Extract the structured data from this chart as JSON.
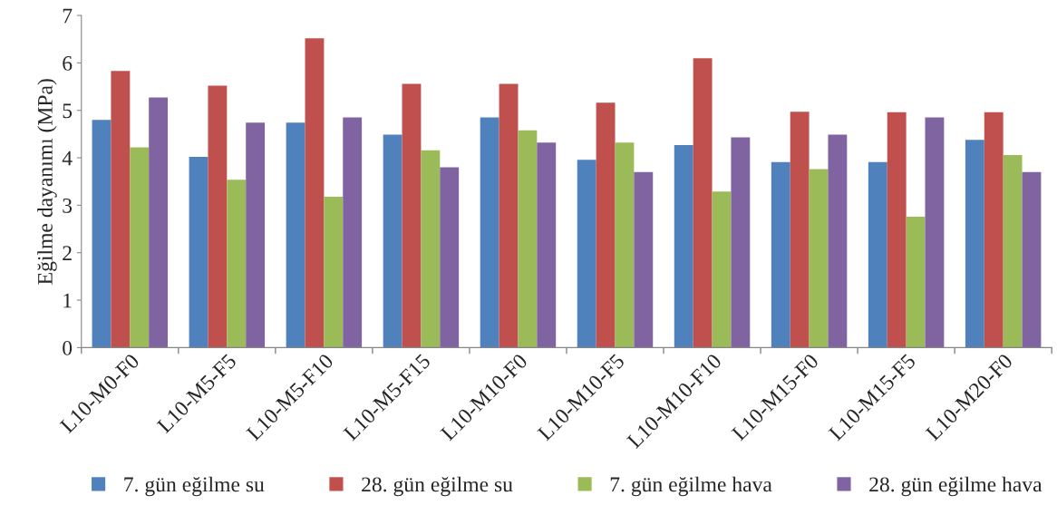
{
  "chart_data": {
    "type": "bar",
    "ylabel": "Eğilme dayanımı (MPa)",
    "categories": [
      "L10-M0-F0",
      "L10-M5-F5",
      "L10-M5-F10",
      "L10-M5-F15",
      "L10-M10-F0",
      "L10-M10-F5",
      "L10-M10-F10",
      "L10-M15-F0",
      "L10-M15-F5",
      "L10-M20-F0"
    ],
    "series": [
      {
        "name": "7. gün eğilme su",
        "color": "#4f81bd",
        "values": [
          4.8,
          4.02,
          4.74,
          4.49,
          4.85,
          3.96,
          4.27,
          3.91,
          3.91,
          4.38
        ]
      },
      {
        "name": "28. gün eğilme su",
        "color": "#c0504d",
        "values": [
          5.83,
          5.52,
          6.52,
          5.56,
          5.56,
          5.16,
          6.1,
          4.97,
          4.96,
          4.96
        ]
      },
      {
        "name": "7. gün eğilme hava",
        "color": "#9bbb59",
        "values": [
          4.22,
          3.54,
          3.18,
          4.16,
          4.58,
          4.32,
          3.29,
          3.76,
          2.76,
          4.06
        ]
      },
      {
        "name": "28. gün eğilme hava",
        "color": "#8064a2",
        "values": [
          5.27,
          4.74,
          4.85,
          3.8,
          4.32,
          3.7,
          4.43,
          4.49,
          4.85,
          3.7
        ]
      }
    ],
    "ylim": [
      0,
      7
    ],
    "yticks": [
      0,
      1,
      2,
      3,
      4,
      5,
      6,
      7
    ],
    "grid": false,
    "legend": "bottom"
  }
}
